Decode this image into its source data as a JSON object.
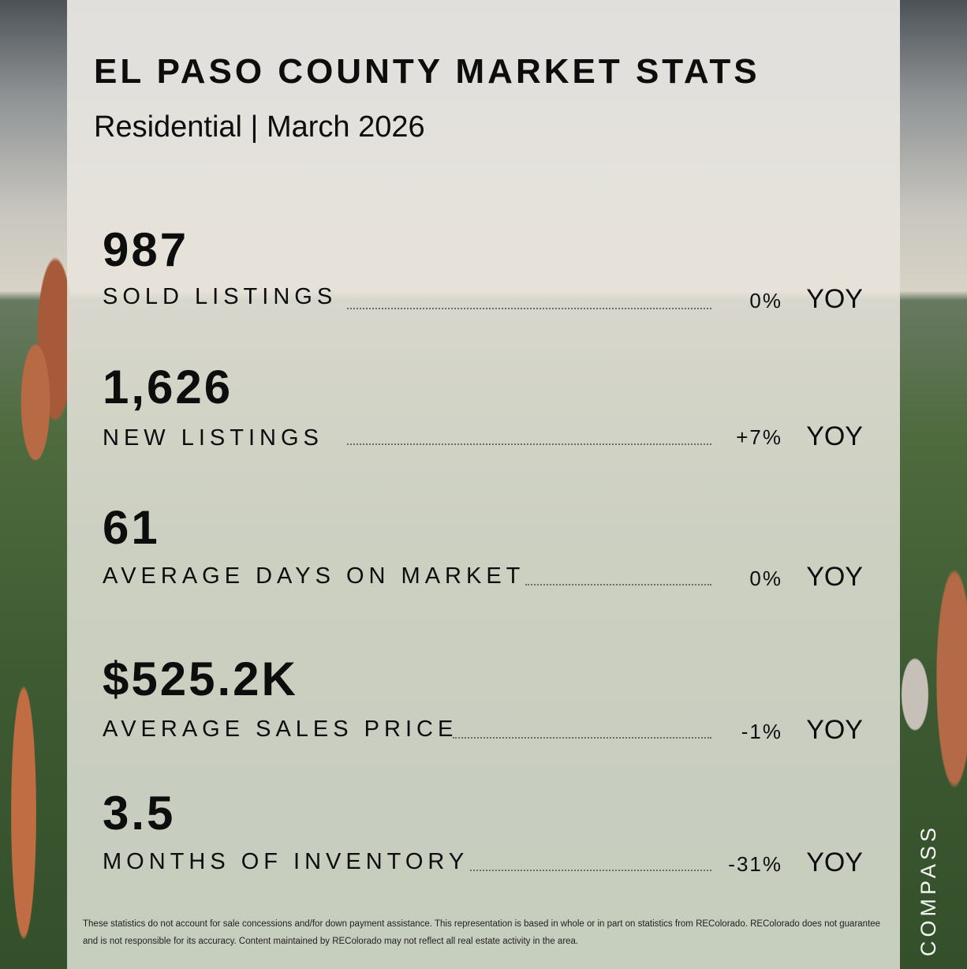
{
  "header": {
    "title": "EL PASO COUNTY MARKET STATS",
    "subtitle": "Residential | March 2026"
  },
  "stats": [
    {
      "value": "987",
      "label": "SOLD LISTINGS",
      "change": "0%",
      "suffix": "YOY"
    },
    {
      "value": "1,626",
      "label": "NEW LISTINGS",
      "change": "+7%",
      "suffix": "YOY"
    },
    {
      "value": "61",
      "label": "AVERAGE DAYS ON MARKET",
      "change": "0%",
      "suffix": "YOY"
    },
    {
      "value": "$525.2K",
      "label": "AVERAGE SALES PRICE",
      "change": "-1%",
      "suffix": "YOY"
    },
    {
      "value": "3.5",
      "label": "MONTHS OF INVENTORY",
      "change": "-31%",
      "suffix": "YOY"
    }
  ],
  "disclaimer": "These statistics do not account for sale concessions and/for down payment assistance. This representation is based in whole or in part on statistics from REColorado. REColorado does not guarantee and is not responsible for its accuracy. Content maintained by REColorado may not reflect all real estate activity in the area.",
  "brand": "COMPASS",
  "colors": {
    "text": "#0d0d0d",
    "panel": "#ebe8e2",
    "brand": "#f4f4f2"
  }
}
